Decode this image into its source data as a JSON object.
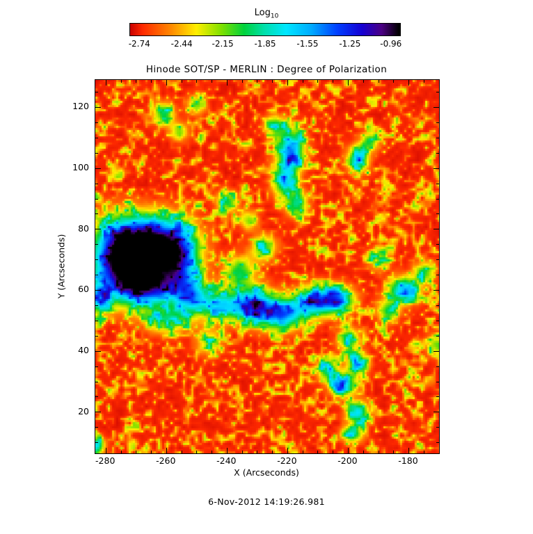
{
  "colorbar": {
    "label": "Log",
    "label_sub": "10"
  },
  "footer": "6-Nov-2012 14:19:26.981",
  "chart_data": {
    "type": "heatmap",
    "title": "Hinode SOT/SP - MERLIN : Degree of Polarization",
    "xlabel": "X (Arcseconds)",
    "ylabel": "Y (Arcseconds)",
    "xlim": [
      -283.5,
      -170
    ],
    "ylim": [
      6.5,
      129
    ],
    "xticks": [
      -280,
      -260,
      -240,
      -220,
      -200,
      -180
    ],
    "yticks": [
      20,
      40,
      60,
      80,
      100,
      120
    ],
    "minor_tick_step": 5,
    "grid": false,
    "value_units": "log10 degree of polarization",
    "colorbar": {
      "label": "Log10",
      "vmin": -2.81,
      "vmax": -0.89,
      "ticks": [
        -2.74,
        -2.44,
        -2.15,
        -1.85,
        -1.55,
        -1.25,
        -0.96
      ],
      "orientation": "horizontal-top"
    },
    "color_stops": [
      [
        -2.9,
        "#c80000"
      ],
      [
        -2.72,
        "#ff2a00"
      ],
      [
        -2.52,
        "#ff8800"
      ],
      [
        -2.34,
        "#ffee00"
      ],
      [
        -2.16,
        "#7de000"
      ],
      [
        -2.0,
        "#00d23c"
      ],
      [
        -1.86,
        "#00dfa8"
      ],
      [
        -1.7,
        "#00e6ff"
      ],
      [
        -1.52,
        "#00aaff"
      ],
      [
        -1.34,
        "#0040ff"
      ],
      [
        -1.16,
        "#1500d2"
      ],
      [
        -1.02,
        "#4b0082"
      ],
      [
        -0.9,
        "#000000"
      ]
    ],
    "coarse_grid": {
      "note": "approximate mean log10 polarization sampled on a 12x13 grid (rows top-to-bottom)",
      "x_centers": [
        -279,
        -269,
        -260,
        -250,
        -241,
        -232,
        -222,
        -213,
        -203,
        -194,
        -184,
        -175
      ],
      "y_centers": [
        124,
        115,
        105,
        96,
        87,
        77,
        68,
        58,
        49,
        39,
        30,
        21,
        11
      ],
      "values": [
        [
          -2.6,
          -2.5,
          -2.3,
          -2.5,
          -2.6,
          -2.5,
          -2.3,
          -2.6,
          -2.6,
          -2.5,
          -2.6,
          -2.6
        ],
        [
          -2.6,
          -2.5,
          -2.1,
          -2.4,
          -2.6,
          -2.4,
          -2.0,
          -2.5,
          -2.3,
          -2.4,
          -2.6,
          -2.6
        ],
        [
          -2.6,
          -2.6,
          -2.4,
          -2.6,
          -2.5,
          -2.4,
          -1.5,
          -2.4,
          -1.8,
          -2.5,
          -2.6,
          -2.6
        ],
        [
          -2.6,
          -2.5,
          -2.5,
          -2.6,
          -2.5,
          -2.4,
          -1.8,
          -2.4,
          -2.2,
          -2.6,
          -2.5,
          -2.6
        ],
        [
          -2.5,
          -2.4,
          -2.5,
          -2.3,
          -2.1,
          -2.4,
          -1.9,
          -2.5,
          -2.6,
          -2.6,
          -2.5,
          -2.6
        ],
        [
          -1.8,
          -1.3,
          -1.1,
          -1.9,
          -2.3,
          -2.2,
          -2.1,
          -2.4,
          -2.6,
          -2.5,
          -2.6,
          -2.6
        ],
        [
          -1.6,
          -1.2,
          -1.0,
          -1.5,
          -2.2,
          -2.4,
          -2.3,
          -2.5,
          -2.6,
          -2.4,
          -2.3,
          -2.5
        ],
        [
          -1.4,
          -1.1,
          -1.3,
          -1.8,
          -2.2,
          -1.9,
          -2.0,
          -2.1,
          -2.4,
          -2.2,
          -1.6,
          -2.4
        ],
        [
          -2.0,
          -1.7,
          -1.6,
          -1.5,
          -1.3,
          -1.2,
          -1.4,
          -1.3,
          -1.9,
          -2.4,
          -2.2,
          -2.5
        ],
        [
          -2.5,
          -2.4,
          -2.3,
          -2.2,
          -2.0,
          -2.1,
          -2.2,
          -1.8,
          -1.6,
          -2.3,
          -2.4,
          -2.3
        ],
        [
          -2.6,
          -2.5,
          -2.5,
          -2.6,
          -2.4,
          -2.5,
          -2.4,
          -2.3,
          -1.5,
          -2.2,
          -2.6,
          -2.6
        ],
        [
          -2.6,
          -2.6,
          -2.4,
          -2.5,
          -2.6,
          -2.4,
          -2.5,
          -2.5,
          -1.7,
          -2.4,
          -2.5,
          -2.6
        ],
        [
          -2.4,
          -2.6,
          -2.5,
          -2.6,
          -2.5,
          -2.6,
          -2.4,
          -2.6,
          -1.9,
          -2.3,
          -2.6,
          -2.6
        ]
      ]
    },
    "field_model": {
      "background": -2.72,
      "noise": {
        "octave1_cells": 2.0,
        "octave2_cells": 5.5,
        "pos_amp": 0.66,
        "neg_amp": 0.12
      },
      "blobs": [
        [
          -266,
          76,
          8,
          6,
          1.8
        ],
        [
          -267,
          62,
          7,
          5,
          1.7
        ],
        [
          -277,
          70,
          6,
          8,
          1.4
        ],
        [
          -256,
          70,
          5,
          7,
          1.2
        ],
        [
          -252,
          58,
          4,
          4,
          1.0
        ],
        [
          -260,
          50,
          5,
          3,
          0.7
        ],
        [
          -242,
          55,
          5,
          3.5,
          1.0
        ],
        [
          -231,
          55,
          4.5,
          4,
          1.35
        ],
        [
          -222,
          52,
          4.5,
          3.5,
          1.25
        ],
        [
          -212,
          56,
          4.5,
          3.5,
          1.15
        ],
        [
          -204,
          57,
          4,
          3,
          1.25
        ],
        [
          -236,
          66,
          3.5,
          3.5,
          0.8
        ],
        [
          -228,
          74,
          3,
          3,
          0.7
        ],
        [
          -219,
          106,
          3,
          4.5,
          1.3
        ],
        [
          -221,
          96,
          3,
          4,
          0.95
        ],
        [
          -217,
          88,
          2.5,
          3,
          0.8
        ],
        [
          -224,
          114,
          2.5,
          2.5,
          0.7
        ],
        [
          -197,
          103,
          2.5,
          3,
          1.05
        ],
        [
          -193,
          109,
          2.2,
          2.2,
          0.7
        ],
        [
          -182,
          60,
          3.5,
          3,
          1.15
        ],
        [
          -175,
          66,
          2.5,
          2.5,
          0.7
        ],
        [
          -187,
          53,
          2.5,
          2.5,
          0.75
        ],
        [
          -200,
          44,
          2.5,
          2.5,
          0.85
        ],
        [
          -197,
          36,
          2.5,
          2.5,
          0.95
        ],
        [
          -202,
          29,
          3,
          2.5,
          1.2
        ],
        [
          -197,
          20,
          2.5,
          2.5,
          1.05
        ],
        [
          -199,
          13,
          2.5,
          2,
          0.9
        ],
        [
          -207,
          34,
          2.5,
          2.5,
          0.8
        ],
        [
          -261,
          118,
          2.5,
          2.5,
          0.8
        ],
        [
          -256,
          112,
          2.2,
          2.2,
          0.6
        ],
        [
          -250,
          121,
          2.2,
          2.2,
          0.6
        ],
        [
          -240,
          89,
          2.5,
          2.5,
          0.75
        ],
        [
          -233,
          83,
          2.2,
          2.2,
          0.6
        ],
        [
          -283,
          57,
          2.5,
          3.5,
          0.9
        ],
        [
          -283,
          9,
          2,
          2,
          0.8
        ],
        [
          -171,
          42,
          2.5,
          2.5,
          0.6
        ],
        [
          -190,
          70,
          2.5,
          2.5,
          0.5
        ],
        [
          -246,
          43,
          3,
          3,
          0.55
        ]
      ]
    }
  }
}
